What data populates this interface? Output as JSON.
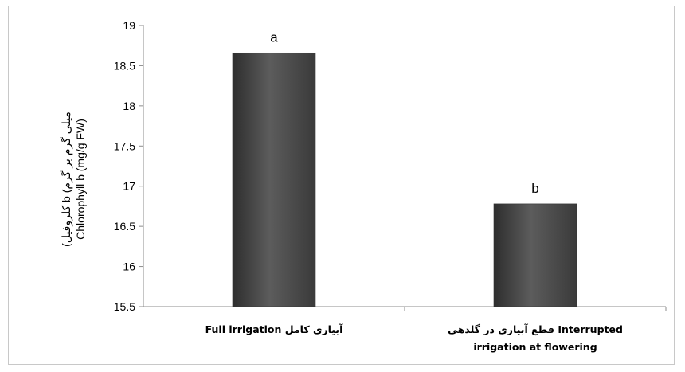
{
  "chart_data": {
    "type": "bar",
    "categories": [
      "Full irrigation آبیاری کامل",
      "قطع آبیاری در گلدهی Interrupted irrigation at flowering"
    ],
    "category_lines": [
      [
        "Full irrigation آبیاری کامل"
      ],
      [
        "قطع آبیاری در گلدهی  Interrupted",
        "irrigation at flowering"
      ]
    ],
    "values": [
      18.66,
      16.78
    ],
    "bar_labels": [
      "a",
      "b"
    ],
    "ylabel": [
      "(کلروفیل b (میلی گرم بر گرم",
      "Chlorophyll b (mg/g FW)"
    ],
    "ylim": [
      15.5,
      19
    ],
    "yticks": [
      "15.5",
      "16",
      "16.5",
      "17",
      "17.5",
      "18",
      "18.5",
      "19"
    ],
    "grid": false,
    "bar_color": "#4d4d4d"
  }
}
